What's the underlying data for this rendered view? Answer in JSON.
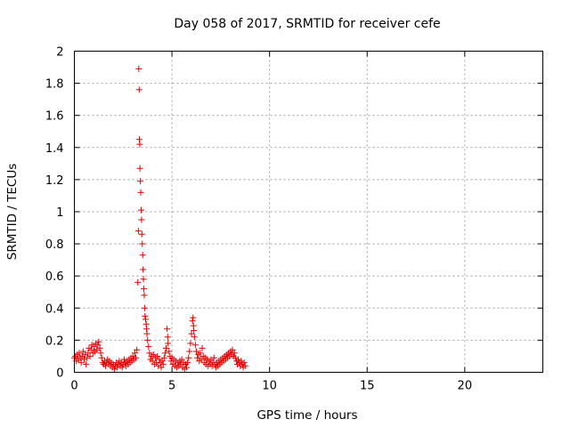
{
  "chart_data": {
    "type": "scatter",
    "title": "Day 058 of 2017, SRMTID for receiver cefe",
    "xlabel": "GPS time / hours",
    "ylabel": "SRMTID / TECUs",
    "xlim": [
      0,
      24
    ],
    "ylim": [
      0,
      2
    ],
    "xticks": [
      0,
      5,
      10,
      15,
      20
    ],
    "xtick_labels": [
      "0",
      "5",
      "10",
      "15",
      "20"
    ],
    "yticks": [
      0,
      0.2,
      0.4,
      0.6,
      0.8,
      1,
      1.2,
      1.4,
      1.6,
      1.8,
      2
    ],
    "ytick_labels": [
      "0",
      "0.2",
      "0.4",
      "0.6",
      "0.8",
      "1",
      "1.2",
      "1.4",
      "1.6",
      "1.8",
      "2"
    ],
    "grid": true,
    "marker": "+",
    "colors": {
      "marker": "#e00000",
      "grid": "#a0a0a0",
      "axis": "#000000"
    },
    "series": [
      {
        "name": "SRMTID",
        "points": [
          [
            0.0,
            0.09
          ],
          [
            0.05,
            0.1
          ],
          [
            0.1,
            0.07
          ],
          [
            0.15,
            0.11
          ],
          [
            0.2,
            0.08
          ],
          [
            0.25,
            0.12
          ],
          [
            0.3,
            0.09
          ],
          [
            0.35,
            0.06
          ],
          [
            0.4,
            0.1
          ],
          [
            0.45,
            0.13
          ],
          [
            0.5,
            0.08
          ],
          [
            0.55,
            0.11
          ],
          [
            0.6,
            0.05
          ],
          [
            0.65,
            0.09
          ],
          [
            0.7,
            0.12
          ],
          [
            0.75,
            0.15
          ],
          [
            0.8,
            0.1
          ],
          [
            0.85,
            0.14
          ],
          [
            0.9,
            0.17
          ],
          [
            0.95,
            0.12
          ],
          [
            1.0,
            0.16
          ],
          [
            1.05,
            0.13
          ],
          [
            1.1,
            0.18
          ],
          [
            1.15,
            0.14
          ],
          [
            1.2,
            0.17
          ],
          [
            1.25,
            0.19
          ],
          [
            1.3,
            0.15
          ],
          [
            1.35,
            0.12
          ],
          [
            1.4,
            0.09
          ],
          [
            1.45,
            0.06
          ],
          [
            1.5,
            0.05
          ],
          [
            1.55,
            0.07
          ],
          [
            1.6,
            0.04
          ],
          [
            1.65,
            0.06
          ],
          [
            1.7,
            0.08
          ],
          [
            1.75,
            0.05
          ],
          [
            1.8,
            0.07
          ],
          [
            1.85,
            0.04
          ],
          [
            1.9,
            0.06
          ],
          [
            1.95,
            0.03
          ],
          [
            2.0,
            0.05
          ],
          [
            2.05,
            0.02
          ],
          [
            2.1,
            0.04
          ],
          [
            2.15,
            0.06
          ],
          [
            2.2,
            0.03
          ],
          [
            2.25,
            0.05
          ],
          [
            2.3,
            0.07
          ],
          [
            2.35,
            0.04
          ],
          [
            2.4,
            0.06
          ],
          [
            2.45,
            0.03
          ],
          [
            2.5,
            0.05
          ],
          [
            2.55,
            0.08
          ],
          [
            2.6,
            0.06
          ],
          [
            2.65,
            0.04
          ],
          [
            2.7,
            0.07
          ],
          [
            2.75,
            0.05
          ],
          [
            2.8,
            0.08
          ],
          [
            2.85,
            0.06
          ],
          [
            2.9,
            0.09
          ],
          [
            2.95,
            0.07
          ],
          [
            3.0,
            0.1
          ],
          [
            3.05,
            0.08
          ],
          [
            3.1,
            0.12
          ],
          [
            3.15,
            0.09
          ],
          [
            3.2,
            0.14
          ],
          [
            3.25,
            0.56
          ],
          [
            3.28,
            0.88
          ],
          [
            3.3,
            1.89
          ],
          [
            3.32,
            1.76
          ],
          [
            3.33,
            1.45
          ],
          [
            3.35,
            1.42
          ],
          [
            3.36,
            1.27
          ],
          [
            3.38,
            1.19
          ],
          [
            3.4,
            1.12
          ],
          [
            3.42,
            1.01
          ],
          [
            3.44,
            0.95
          ],
          [
            3.46,
            0.86
          ],
          [
            3.48,
            0.8
          ],
          [
            3.5,
            0.73
          ],
          [
            3.52,
            0.64
          ],
          [
            3.54,
            0.58
          ],
          [
            3.56,
            0.52
          ],
          [
            3.58,
            0.48
          ],
          [
            3.6,
            0.4
          ],
          [
            3.62,
            0.35
          ],
          [
            3.65,
            0.33
          ],
          [
            3.68,
            0.3
          ],
          [
            3.7,
            0.27
          ],
          [
            3.72,
            0.24
          ],
          [
            3.75,
            0.2
          ],
          [
            3.8,
            0.16
          ],
          [
            3.85,
            0.12
          ],
          [
            3.9,
            0.08
          ],
          [
            3.95,
            0.1
          ],
          [
            4.0,
            0.07
          ],
          [
            4.05,
            0.11
          ],
          [
            4.1,
            0.05
          ],
          [
            4.15,
            0.09
          ],
          [
            4.2,
            0.06
          ],
          [
            4.25,
            0.1
          ],
          [
            4.3,
            0.04
          ],
          [
            4.35,
            0.08
          ],
          [
            4.4,
            0.06
          ],
          [
            4.45,
            0.03
          ],
          [
            4.5,
            0.07
          ],
          [
            4.55,
            0.05
          ],
          [
            4.6,
            0.09
          ],
          [
            4.65,
            0.12
          ],
          [
            4.7,
            0.15
          ],
          [
            4.75,
            0.27
          ],
          [
            4.78,
            0.22
          ],
          [
            4.8,
            0.18
          ],
          [
            4.85,
            0.13
          ],
          [
            4.9,
            0.1
          ],
          [
            4.95,
            0.07
          ],
          [
            5.0,
            0.09
          ],
          [
            5.05,
            0.05
          ],
          [
            5.1,
            0.08
          ],
          [
            5.15,
            0.04
          ],
          [
            5.2,
            0.07
          ],
          [
            5.25,
            0.03
          ],
          [
            5.3,
            0.06
          ],
          [
            5.35,
            0.04
          ],
          [
            5.4,
            0.07
          ],
          [
            5.45,
            0.05
          ],
          [
            5.5,
            0.08
          ],
          [
            5.55,
            0.03
          ],
          [
            5.6,
            0.06
          ],
          [
            5.65,
            0.02
          ],
          [
            5.7,
            0.05
          ],
          [
            5.75,
            0.03
          ],
          [
            5.8,
            0.06
          ],
          [
            5.85,
            0.09
          ],
          [
            5.9,
            0.13
          ],
          [
            5.95,
            0.18
          ],
          [
            6.0,
            0.24
          ],
          [
            6.05,
            0.32
          ],
          [
            6.08,
            0.34
          ],
          [
            6.1,
            0.29
          ],
          [
            6.12,
            0.26
          ],
          [
            6.15,
            0.22
          ],
          [
            6.2,
            0.17
          ],
          [
            6.25,
            0.13
          ],
          [
            6.3,
            0.09
          ],
          [
            6.35,
            0.11
          ],
          [
            6.4,
            0.07
          ],
          [
            6.45,
            0.12
          ],
          [
            6.5,
            0.08
          ],
          [
            6.55,
            0.15
          ],
          [
            6.6,
            0.1
          ],
          [
            6.65,
            0.06
          ],
          [
            6.7,
            0.09
          ],
          [
            6.75,
            0.05
          ],
          [
            6.8,
            0.08
          ],
          [
            6.85,
            0.04
          ],
          [
            6.9,
            0.07
          ],
          [
            6.95,
            0.05
          ],
          [
            7.0,
            0.08
          ],
          [
            7.05,
            0.04
          ],
          [
            7.1,
            0.06
          ],
          [
            7.15,
            0.09
          ],
          [
            7.2,
            0.05
          ],
          [
            7.25,
            0.03
          ],
          [
            7.3,
            0.06
          ],
          [
            7.35,
            0.04
          ],
          [
            7.4,
            0.07
          ],
          [
            7.45,
            0.05
          ],
          [
            7.5,
            0.08
          ],
          [
            7.55,
            0.06
          ],
          [
            7.6,
            0.09
          ],
          [
            7.65,
            0.07
          ],
          [
            7.7,
            0.1
          ],
          [
            7.75,
            0.08
          ],
          [
            7.8,
            0.11
          ],
          [
            7.85,
            0.09
          ],
          [
            7.9,
            0.12
          ],
          [
            7.95,
            0.1
          ],
          [
            8.0,
            0.13
          ],
          [
            8.05,
            0.11
          ],
          [
            8.1,
            0.14
          ],
          [
            8.15,
            0.1
          ],
          [
            8.2,
            0.12
          ],
          [
            8.25,
            0.09
          ],
          [
            8.3,
            0.07
          ],
          [
            8.35,
            0.05
          ],
          [
            8.4,
            0.08
          ],
          [
            8.45,
            0.06
          ],
          [
            8.5,
            0.04
          ],
          [
            8.55,
            0.07
          ],
          [
            8.6,
            0.05
          ],
          [
            8.65,
            0.03
          ],
          [
            8.7,
            0.06
          ],
          [
            8.75,
            0.04
          ]
        ]
      }
    ]
  }
}
